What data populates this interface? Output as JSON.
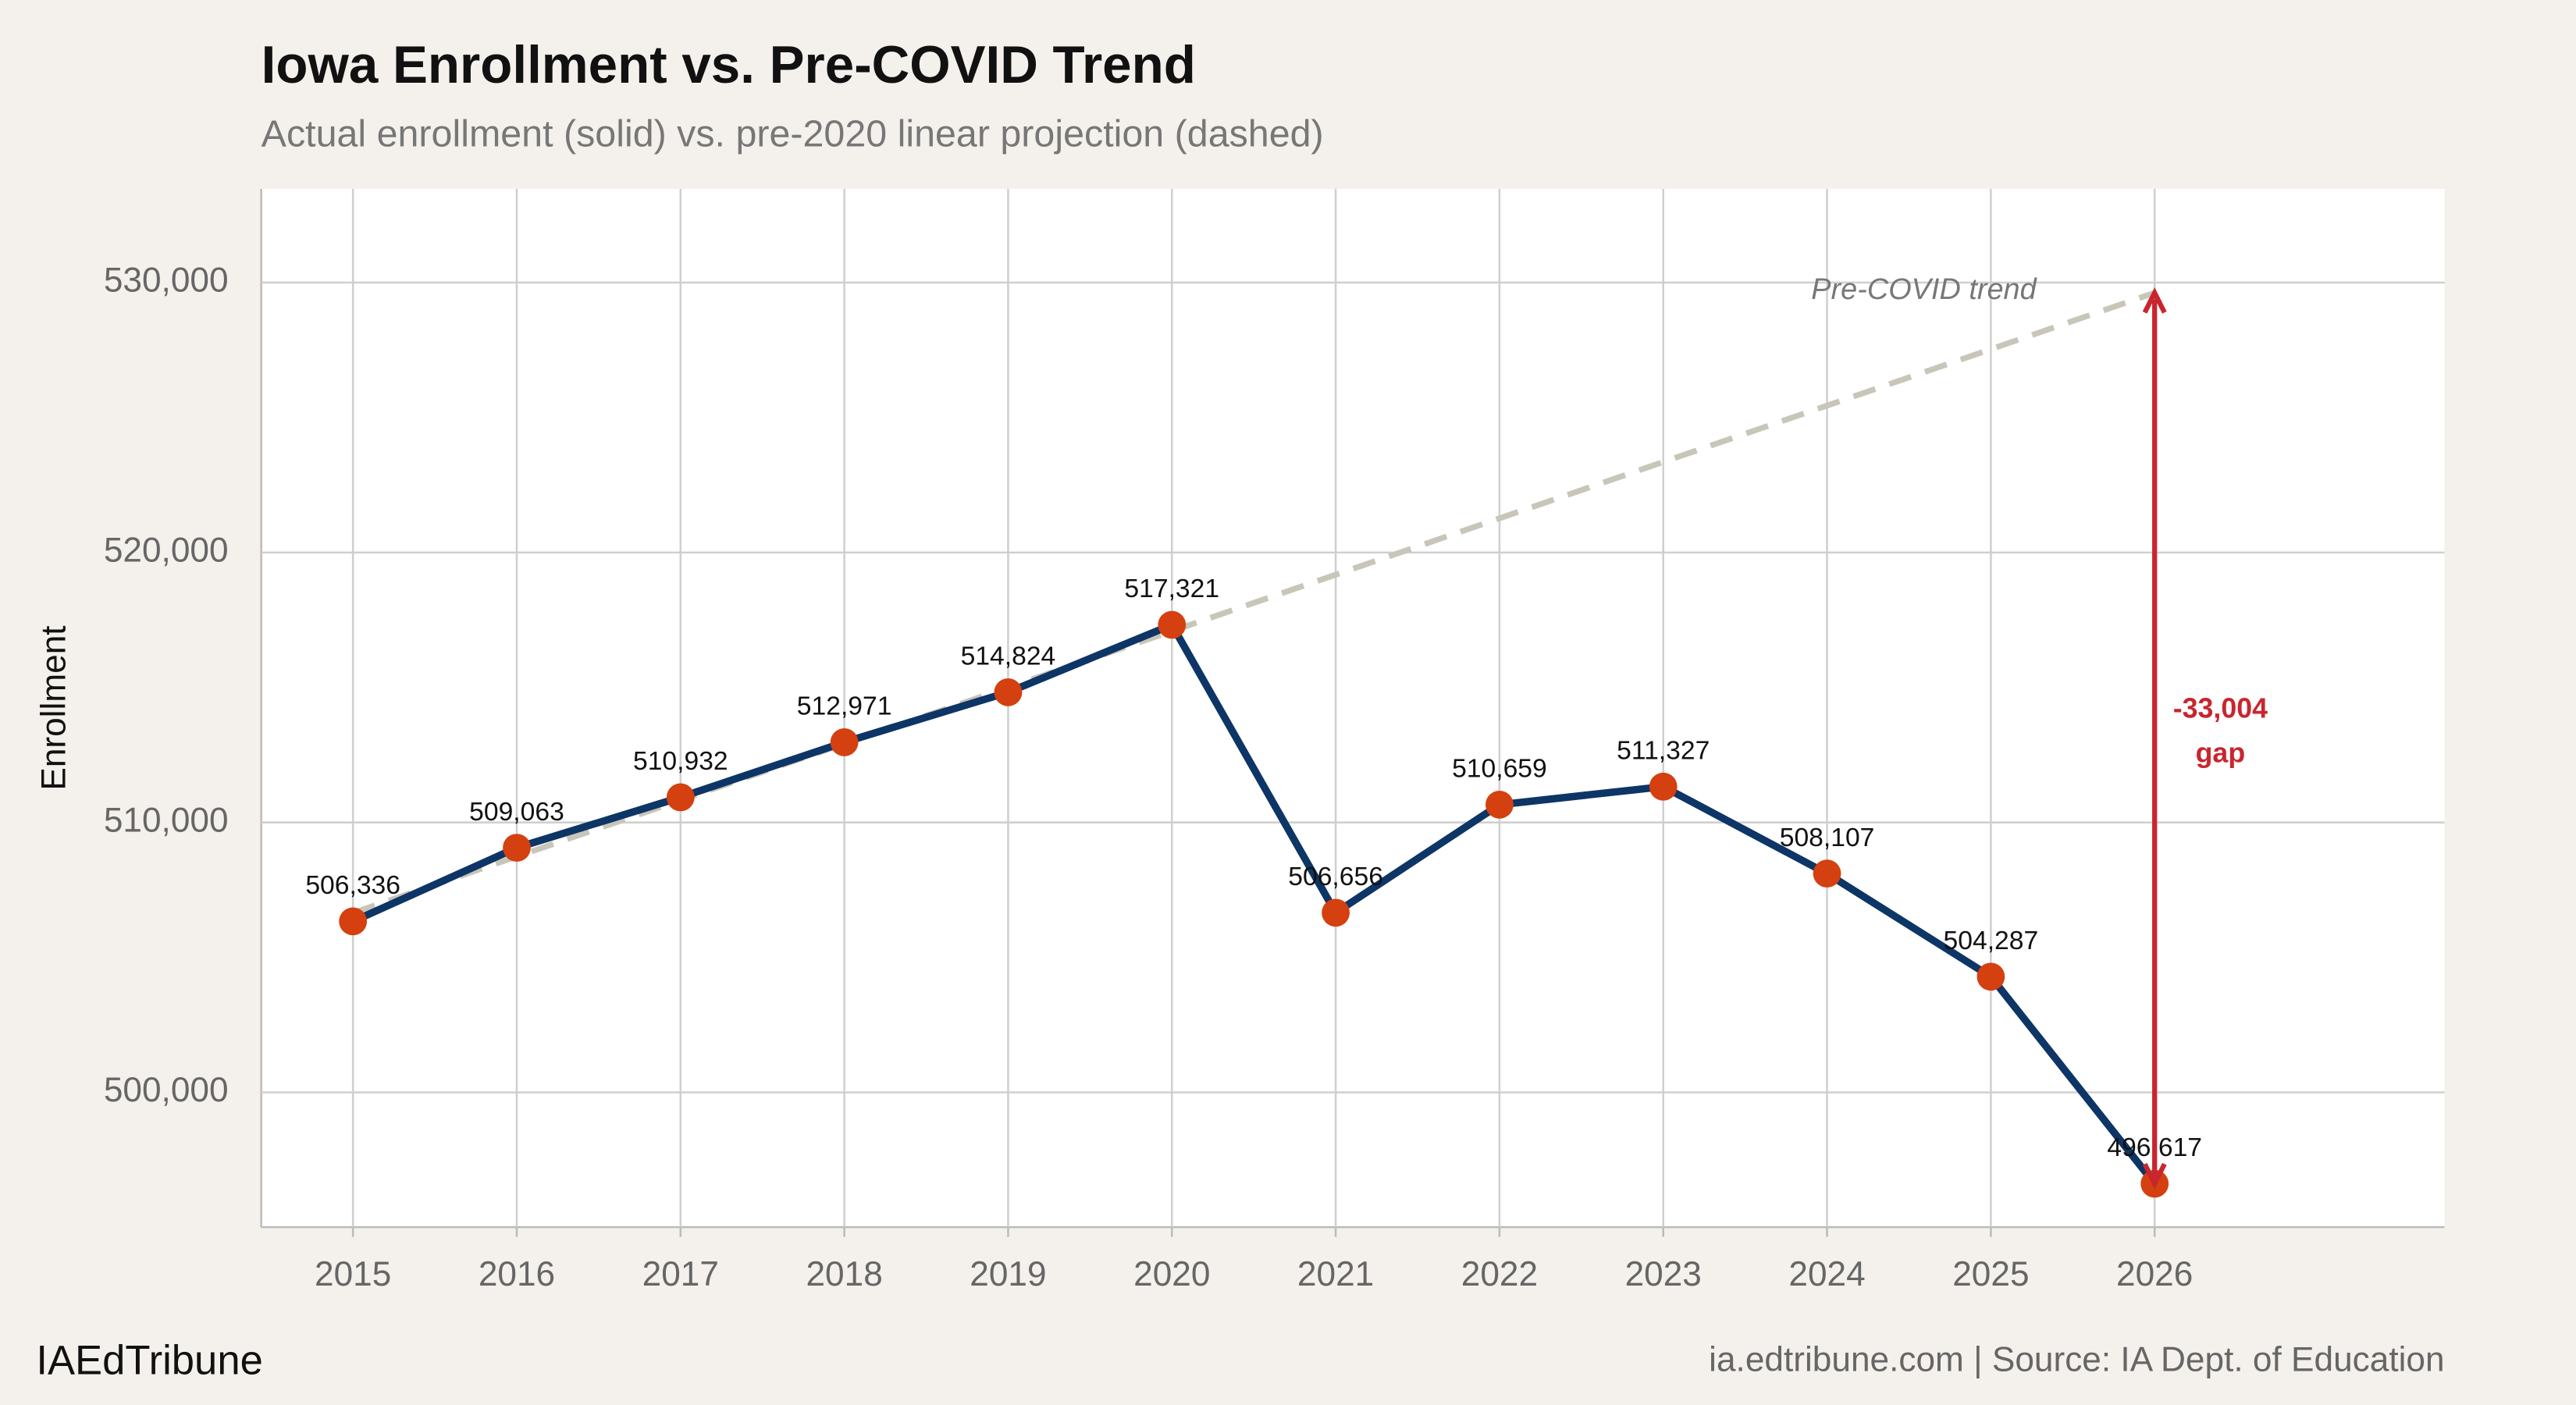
{
  "chart_data": {
    "type": "line",
    "title": "Iowa Enrollment vs. Pre-COVID Trend",
    "subtitle": "Actual enrollment (solid) vs. pre-2020 linear projection (dashed)",
    "y_label": "Enrollment",
    "x": [
      2015,
      2016,
      2017,
      2018,
      2019,
      2020,
      2021,
      2022,
      2023,
      2024,
      2025,
      2026
    ],
    "series": [
      {
        "color": "#0d3566",
        "marker_color": "#d4400f",
        "values": [
          506336,
          509063,
          510932,
          512971,
          514824,
          517321,
          506656,
          510659,
          511327,
          508107,
          504287,
          496617
        ],
        "value_labels": [
          "506,336",
          "509,063",
          "510,932",
          "512,971",
          "514,824",
          "517,321",
          "506,656",
          "510,659",
          "511,327",
          "508,107",
          "504,287",
          "496,617"
        ]
      },
      {
        "color": "#c8c5b9",
        "dashed": true,
        "values": [
          506648,
          508737,
          510825,
          512914,
          515002,
          517090,
          519179,
          521267,
          523356,
          525444,
          527532,
          529621
        ]
      }
    ],
    "trend_label": "Pre-COVID trend",
    "gap": {
      "value": -33004,
      "label": "-33,004",
      "note": "gap",
      "color": "#c8262f"
    },
    "xlim": [
      2014.44,
      2027.77
    ],
    "xticks": [
      2015,
      2016,
      2017,
      2018,
      2019,
      2020,
      2021,
      2022,
      2023,
      2024,
      2025,
      2026
    ],
    "ylim": [
      495010,
      533470
    ],
    "yticks": [
      {
        "value": 500000,
        "label": "500,000"
      },
      {
        "value": 510000,
        "label": "510,000"
      },
      {
        "value": 520000,
        "label": "520,000"
      },
      {
        "value": 530000,
        "label": "530,000"
      }
    ],
    "grid": true,
    "footer_left": "IAEdTribune",
    "footer_right": "ia.edtribune.com | Source: IA Dept. of Education"
  }
}
